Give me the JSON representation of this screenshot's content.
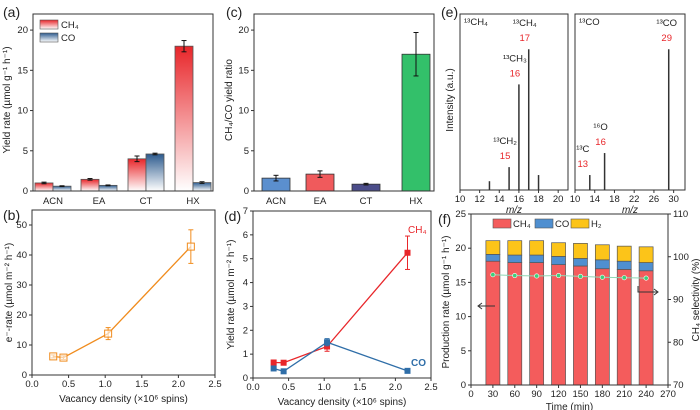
{
  "chart_data": [
    {
      "panel_label": "(a)",
      "type": "bar",
      "categories": [
        "ACN",
        "EA",
        "CT",
        "HX"
      ],
      "series": [
        {
          "name": "CH₄",
          "values": [
            1.0,
            1.45,
            4.0,
            18.0
          ],
          "errors": [
            0.1,
            0.1,
            0.35,
            0.7
          ],
          "color": "#e8262a"
        },
        {
          "name": "CO",
          "values": [
            0.6,
            0.7,
            4.6,
            1.05
          ],
          "errors": [
            0.05,
            0.05,
            0.1,
            0.1
          ],
          "color": "#2d5b8e"
        }
      ],
      "xlabel": "",
      "ylabel": "Yield rate (µmol g⁻¹ h⁻¹)",
      "ylim": [
        0,
        22
      ],
      "yticks": [
        "0",
        "5",
        "10",
        "15",
        "20"
      ],
      "legend": "top-left",
      "grid": false
    },
    {
      "panel_label": "(b)",
      "type": "line",
      "x": [
        0.29,
        0.43,
        1.04,
        2.17
      ],
      "series": [
        {
          "values": [
            6.2,
            5.8,
            13.8,
            42.8
          ],
          "errors": [
            0.5,
            0.6,
            2.0,
            5.6
          ],
          "color": "#f08c1e",
          "marker": "open-square"
        }
      ],
      "xlabel": "Vacancy density (×10⁶ spins)",
      "ylabel": "e⁻-rate (µmol m⁻² h⁻¹)",
      "xlim": [
        0,
        2.5
      ],
      "ylim": [
        0,
        55
      ],
      "xticks": [
        "0.0",
        "0.5",
        "1.0",
        "1.5",
        "2.0",
        "2.5"
      ],
      "yticks": [
        "0",
        "10",
        "20",
        "30",
        "40",
        "50"
      ],
      "grid": false
    },
    {
      "panel_label": "(c)",
      "type": "bar",
      "categories": [
        "ACN",
        "EA",
        "CT",
        "HX"
      ],
      "values": [
        1.6,
        2.1,
        0.85,
        17.0
      ],
      "errors": [
        0.35,
        0.4,
        0.1,
        2.7
      ],
      "colors": [
        "#5b8fce",
        "#f05a5c",
        "#4b4d8a",
        "#33c06a"
      ],
      "xlabel": "",
      "ylabel": "CH₄/CO yield ratio",
      "ylim": [
        0,
        22
      ],
      "yticks": [
        "0",
        "5",
        "10",
        "15",
        "20"
      ],
      "grid": false
    },
    {
      "panel_label": "(d)",
      "type": "line",
      "x": [
        0.29,
        0.43,
        1.04,
        2.17
      ],
      "series": [
        {
          "name": "CH₄",
          "values": [
            0.65,
            0.64,
            1.32,
            5.25
          ],
          "errors": [
            0.05,
            0.05,
            0.2,
            0.7
          ],
          "color": "#e8262a"
        },
        {
          "name": "CO",
          "values": [
            0.4,
            0.28,
            1.5,
            0.3
          ],
          "errors": [
            0.05,
            0.05,
            0.15,
            0.05
          ],
          "color": "#2f6ea8"
        }
      ],
      "xlabel": "Vacancy density (×10⁶ spins)",
      "ylabel": "Yield rate (µmol m⁻² h⁻¹)",
      "xlim": [
        0,
        2.5
      ],
      "ylim": [
        0,
        7
      ],
      "xticks": [
        "0.0",
        "0.5",
        "1.0",
        "1.5",
        "2.0",
        "2.5"
      ],
      "yticks": [
        "0",
        "1",
        "2",
        "3",
        "4",
        "5",
        "6",
        "7"
      ],
      "grid": false
    },
    {
      "panel_label": "(e)",
      "type": "bar",
      "ylabel": "Intensity (a.u.)",
      "subplots": [
        {
          "title": "¹³CH₄",
          "xlabel": "m/z",
          "xlim": [
            10,
            21
          ],
          "xticks": [
            "10",
            "12",
            "14",
            "16",
            "18",
            "20"
          ],
          "peaks": [
            {
              "mz": 13,
              "intensity": 0.05
            },
            {
              "mz": 15,
              "intensity": 0.13,
              "label": "¹³CH₂",
              "number": "15"
            },
            {
              "mz": 16,
              "intensity": 0.6,
              "label": "¹³CH₃",
              "number": "16"
            },
            {
              "mz": 17,
              "intensity": 0.8,
              "label": "¹³CH₄",
              "number": "17"
            },
            {
              "mz": 18,
              "intensity": 0.085
            }
          ]
        },
        {
          "title": "¹³CO",
          "xlabel": "m/z",
          "xlim": [
            10,
            32.3
          ],
          "xticks": [
            "10",
            "14",
            "18",
            "22",
            "26",
            "30"
          ],
          "peaks": [
            {
              "mz": 13,
              "intensity": 0.085,
              "label": "¹³C",
              "number": "13"
            },
            {
              "mz": 16,
              "intensity": 0.21,
              "label": "¹⁶O",
              "number": "16"
            },
            {
              "mz": 29,
              "intensity": 0.8,
              "label": "¹³CO",
              "number": "29"
            }
          ]
        }
      ],
      "grid": false
    },
    {
      "panel_label": "(f)",
      "type": "bar",
      "stacked": true,
      "x": [
        30,
        60,
        90,
        120,
        150,
        180,
        210,
        240
      ],
      "series": [
        {
          "name": "CH₄",
          "values": [
            18.1,
            17.9,
            17.9,
            17.6,
            17.4,
            17.0,
            16.9,
            16.7
          ],
          "color": "#f45c5c"
        },
        {
          "name": "CO",
          "values": [
            1.0,
            1.1,
            1.1,
            1.2,
            1.1,
            1.3,
            1.2,
            1.2
          ],
          "color": "#4f8fd0"
        },
        {
          "name": "H₂",
          "values": [
            2.0,
            2.1,
            2.1,
            2.0,
            2.2,
            2.2,
            2.2,
            2.3
          ],
          "color": "#fcc419"
        }
      ],
      "selectivity": {
        "values": [
          95.8,
          95.6,
          95.5,
          95.6,
          95.4,
          95.2,
          95.1,
          95.0
        ],
        "color": "#3ccf7a",
        "axis": "right"
      },
      "xlabel": "Time (min)",
      "ylabel": "Production rate (µmol g⁻¹ h⁻¹)",
      "y2label": "CH₄ selectivity (%)",
      "xlim": [
        0,
        270
      ],
      "ylim": [
        0,
        25
      ],
      "y2lim": [
        70,
        110
      ],
      "xticks": [
        "0",
        "30",
        "60",
        "90",
        "120",
        "150",
        "180",
        "210",
        "240",
        "270"
      ],
      "yticks": [
        "0",
        "5",
        "10",
        "15",
        "20",
        "25"
      ],
      "y2ticks": [
        "70",
        "80",
        "90",
        "100",
        "110"
      ],
      "legend": "top",
      "grid": false
    }
  ]
}
